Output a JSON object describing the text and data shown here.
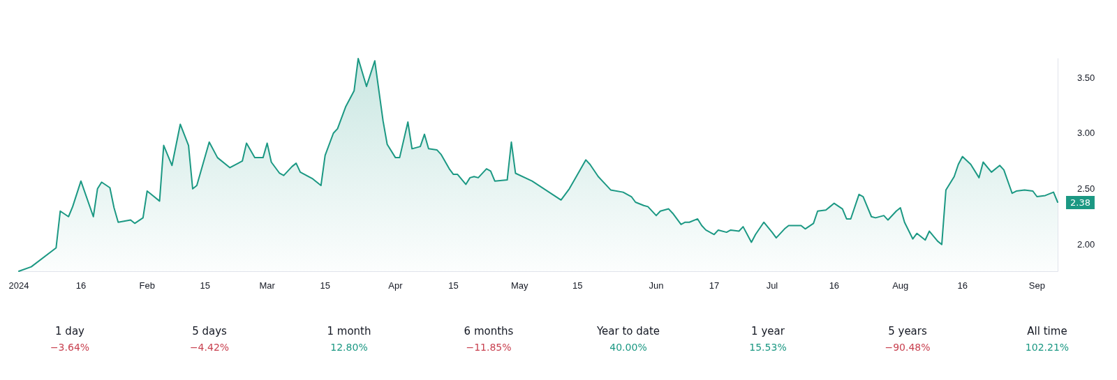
{
  "chart_data": [
    {
      "type": "area",
      "color": "#1b9883",
      "x": [
        "2024-01-01",
        "2024-01-04",
        "2024-01-10",
        "2024-01-11",
        "2024-01-13",
        "2024-01-14",
        "2024-01-16",
        "2024-01-19",
        "2024-01-20",
        "2024-01-21",
        "2024-01-23",
        "2024-01-24",
        "2024-01-25",
        "2024-01-28",
        "2024-01-29",
        "2024-01-31",
        "2024-02-01",
        "2024-02-02",
        "2024-02-04",
        "2024-02-05",
        "2024-02-07",
        "2024-02-09",
        "2024-02-11",
        "2024-02-12",
        "2024-02-13",
        "2024-02-16",
        "2024-02-18",
        "2024-02-21",
        "2024-02-23",
        "2024-02-24",
        "2024-02-25",
        "2024-02-27",
        "2024-02-29",
        "2024-03-01",
        "2024-03-02",
        "2024-03-04",
        "2024-03-05",
        "2024-03-07",
        "2024-03-08",
        "2024-03-09",
        "2024-03-12",
        "2024-03-14",
        "2024-03-15",
        "2024-03-17",
        "2024-03-18",
        "2024-03-20",
        "2024-03-22",
        "2024-03-23",
        "2024-03-25",
        "2024-03-27",
        "2024-03-29",
        "2024-03-30",
        "2024-04-01",
        "2024-04-02",
        "2024-04-04",
        "2024-04-05",
        "2024-04-07",
        "2024-04-08",
        "2024-04-09",
        "2024-04-11",
        "2024-04-12",
        "2024-04-14",
        "2024-04-15",
        "2024-04-16",
        "2024-04-18",
        "2024-04-19",
        "2024-04-20",
        "2024-04-21",
        "2024-04-23",
        "2024-04-24",
        "2024-04-25",
        "2024-04-28",
        "2024-04-29",
        "2024-04-30",
        "2024-05-04",
        "2024-05-11",
        "2024-05-13",
        "2024-05-17",
        "2024-05-18",
        "2024-05-20",
        "2024-05-21",
        "2024-05-23",
        "2024-05-26",
        "2024-05-28",
        "2024-05-29",
        "2024-05-31",
        "2024-06-01",
        "2024-06-03",
        "2024-06-04",
        "2024-06-06",
        "2024-06-07",
        "2024-06-09",
        "2024-06-10",
        "2024-06-11",
        "2024-06-13",
        "2024-06-14",
        "2024-06-15",
        "2024-06-17",
        "2024-06-18",
        "2024-06-20",
        "2024-06-21",
        "2024-06-23",
        "2024-06-24",
        "2024-06-26",
        "2024-06-27",
        "2024-06-29",
        "2024-07-01",
        "2024-07-02",
        "2024-07-04",
        "2024-07-05",
        "2024-07-06",
        "2024-07-08",
        "2024-07-09",
        "2024-07-11",
        "2024-07-12",
        "2024-07-14",
        "2024-07-15",
        "2024-07-16",
        "2024-07-18",
        "2024-07-19",
        "2024-07-20",
        "2024-07-22",
        "2024-07-23",
        "2024-07-25",
        "2024-07-26",
        "2024-07-28",
        "2024-07-29",
        "2024-07-31",
        "2024-08-01",
        "2024-08-02",
        "2024-08-04",
        "2024-08-05",
        "2024-08-07",
        "2024-08-08",
        "2024-08-10",
        "2024-08-11",
        "2024-08-12",
        "2024-08-14",
        "2024-08-15",
        "2024-08-16",
        "2024-08-18",
        "2024-08-20",
        "2024-08-21",
        "2024-08-23",
        "2024-08-25",
        "2024-08-26",
        "2024-08-28",
        "2024-08-29",
        "2024-08-31",
        "2024-09-02",
        "2024-09-03",
        "2024-09-05",
        "2024-09-07",
        "2024-09-08"
      ],
      "values": [
        1.76,
        1.8,
        1.97,
        2.3,
        2.25,
        2.34,
        2.57,
        2.25,
        2.5,
        2.56,
        2.51,
        2.33,
        2.2,
        2.22,
        2.19,
        2.24,
        2.48,
        2.45,
        2.39,
        2.89,
        2.71,
        3.08,
        2.89,
        2.5,
        2.53,
        2.92,
        2.78,
        2.69,
        2.73,
        2.75,
        2.91,
        2.78,
        2.78,
        2.91,
        2.74,
        2.64,
        2.62,
        2.7,
        2.73,
        2.65,
        2.59,
        2.53,
        2.8,
        3.0,
        3.04,
        3.24,
        3.38,
        3.67,
        3.42,
        3.65,
        3.11,
        2.9,
        2.78,
        2.78,
        3.1,
        2.86,
        2.88,
        2.99,
        2.86,
        2.85,
        2.81,
        2.68,
        2.63,
        2.63,
        2.54,
        2.6,
        2.61,
        2.6,
        2.68,
        2.66,
        2.57,
        2.58,
        2.92,
        2.64,
        2.57,
        2.4,
        2.5,
        2.76,
        2.72,
        2.61,
        2.57,
        2.49,
        2.47,
        2.43,
        2.38,
        2.35,
        2.34,
        2.26,
        2.3,
        2.32,
        2.28,
        2.18,
        2.2,
        2.2,
        2.23,
        2.17,
        2.13,
        2.09,
        2.13,
        2.11,
        2.13,
        2.12,
        2.16,
        2.02,
        2.09,
        2.2,
        2.11,
        2.06,
        2.14,
        2.17,
        2.17,
        2.17,
        2.14,
        2.19,
        2.3,
        2.31,
        2.34,
        2.37,
        2.32,
        2.23,
        2.23,
        2.45,
        2.43,
        2.25,
        2.24,
        2.26,
        2.22,
        2.3,
        2.33,
        2.2,
        2.05,
        2.1,
        2.04,
        2.12,
        2.03,
        2.0,
        2.49,
        2.61,
        2.72,
        2.79,
        2.72,
        2.6,
        2.74,
        2.65,
        2.71,
        2.67,
        2.46,
        2.48,
        2.49,
        2.48,
        2.43,
        2.44,
        2.47,
        2.38
      ],
      "xlim": [
        "2024-01-01",
        "2024-09-08"
      ],
      "xticks": [
        {
          "value": "2024-01-01",
          "label": "2024"
        },
        {
          "value": "2024-01-16",
          "label": "16"
        },
        {
          "value": "2024-02-01",
          "label": "Feb"
        },
        {
          "value": "2024-02-15",
          "label": "15"
        },
        {
          "value": "2024-03-01",
          "label": "Mar"
        },
        {
          "value": "2024-03-15",
          "label": "15"
        },
        {
          "value": "2024-04-01",
          "label": "Apr"
        },
        {
          "value": "2024-04-15",
          "label": "15"
        },
        {
          "value": "2024-05-01",
          "label": "May"
        },
        {
          "value": "2024-05-15",
          "label": "15"
        },
        {
          "value": "2024-06-03",
          "label": "Jun"
        },
        {
          "value": "2024-06-17",
          "label": "17"
        },
        {
          "value": "2024-07-01",
          "label": "Jul"
        },
        {
          "value": "2024-07-16",
          "label": "16"
        },
        {
          "value": "2024-08-01",
          "label": "Aug"
        },
        {
          "value": "2024-08-16",
          "label": "16"
        },
        {
          "value": "2024-09-03",
          "label": "Sep"
        }
      ],
      "ylim": [
        1.76,
        3.67
      ],
      "yticks": [
        {
          "value": 2,
          "label": "2.00"
        },
        {
          "value": 2.5,
          "label": "2.50"
        },
        {
          "value": 3,
          "label": "3.00"
        },
        {
          "value": 3.5,
          "label": "3.50"
        }
      ],
      "annotations": [
        {
          "text": "2.38",
          "x": "2024-09-08",
          "y": 2.38
        }
      ],
      "grid": false,
      "marker": "none",
      "line_style": "solid"
    },
    {
      "type": "other",
      "categories": [
        "1 day",
        "5 days",
        "1 month",
        "6 months",
        "Year to date",
        "1 year",
        "5 years",
        "All time"
      ],
      "values": [
        -3.64,
        -4.42,
        12.8,
        -11.85,
        40.0,
        15.53,
        -90.48,
        102.21
      ],
      "value_labels": [
        "−3.64%",
        "−4.42%",
        "12.80%",
        "−11.85%",
        "40.00%",
        "15.53%",
        "−90.48%",
        "102.21%"
      ],
      "colors": [
        "#c8404f",
        "#c8404f",
        "#1b9883",
        "#c8404f",
        "#1b9883",
        "#1b9883",
        "#c8404f",
        "#1b9883"
      ]
    }
  ]
}
